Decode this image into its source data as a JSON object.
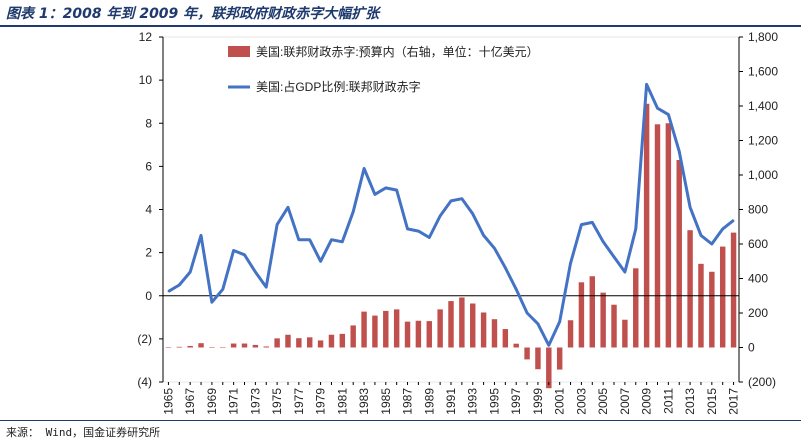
{
  "title": "图表 1：2008 年到 2009 年，联邦政府财政赤字大幅扩张",
  "source": "来源： Wind，国金证券研究所",
  "colors": {
    "bar": "#c0504d",
    "line": "#4472c4",
    "title": "#1f3a6e"
  },
  "chart_data": {
    "type": "bar+line",
    "categories": [
      "1965",
      "1966",
      "1967",
      "1968",
      "1969",
      "1970",
      "1971",
      "1972",
      "1973",
      "1974",
      "1975",
      "1976",
      "1977",
      "1978",
      "1979",
      "1980",
      "1981",
      "1982",
      "1983",
      "1984",
      "1985",
      "1986",
      "1987",
      "1988",
      "1989",
      "1990",
      "1991",
      "1992",
      "1993",
      "1994",
      "1995",
      "1996",
      "1997",
      "1998",
      "1999",
      "2000",
      "2001",
      "2002",
      "2003",
      "2004",
      "2005",
      "2006",
      "2007",
      "2008",
      "2009",
      "2010",
      "2011",
      "2012",
      "2013",
      "2014",
      "2015",
      "2016",
      "2017"
    ],
    "x_tick_labels": [
      "1965",
      "1967",
      "1969",
      "1971",
      "1973",
      "1975",
      "1977",
      "1979",
      "1981",
      "1983",
      "1985",
      "1987",
      "1989",
      "1991",
      "1993",
      "1995",
      "1997",
      "1999",
      "2001",
      "2003",
      "2005",
      "2007",
      "2009",
      "2011",
      "2013",
      "2015",
      "2017"
    ],
    "series": [
      {
        "name": "美国:联邦财政赤字:预算内（右轴，单位：十亿美元）",
        "type": "bar",
        "axis": "right",
        "values": [
          1,
          4,
          9,
          25,
          -3,
          3,
          23,
          23,
          15,
          6,
          53,
          74,
          54,
          59,
          41,
          74,
          79,
          128,
          208,
          185,
          212,
          221,
          150,
          155,
          153,
          221,
          269,
          290,
          255,
          203,
          164,
          107,
          22,
          -69,
          -126,
          -236,
          -128,
          158,
          378,
          413,
          318,
          248,
          161,
          459,
          1413,
          1294,
          1300,
          1087,
          680,
          485,
          439,
          585,
          666
        ]
      },
      {
        "name": "美国:占GDP比例:联邦财政赤字",
        "type": "line",
        "axis": "left",
        "values": [
          0.2,
          0.5,
          1.1,
          2.8,
          -0.3,
          0.3,
          2.1,
          1.9,
          1.1,
          0.4,
          3.3,
          4.1,
          2.6,
          2.6,
          1.6,
          2.6,
          2.5,
          3.9,
          5.9,
          4.7,
          5.0,
          4.9,
          3.1,
          3.0,
          2.7,
          3.7,
          4.4,
          4.5,
          3.8,
          2.8,
          2.2,
          1.3,
          0.3,
          -0.8,
          -1.3,
          -2.3,
          -1.2,
          1.5,
          3.3,
          3.4,
          2.5,
          1.8,
          1.1,
          3.1,
          9.8,
          8.7,
          8.4,
          6.7,
          4.1,
          2.8,
          2.4,
          3.1,
          3.5
        ]
      }
    ],
    "left_axis": {
      "ylim": [
        -4,
        12
      ],
      "ticks": [
        -4,
        -2,
        0,
        2,
        4,
        6,
        8,
        10,
        12
      ],
      "tick_labels": [
        "(4)",
        "(2)",
        "0",
        "2",
        "4",
        "6",
        "8",
        "10",
        "12"
      ]
    },
    "right_axis": {
      "ylim": [
        -200,
        1800
      ],
      "ticks": [
        -200,
        0,
        200,
        400,
        600,
        800,
        1000,
        1200,
        1400,
        1600,
        1800
      ],
      "tick_labels": [
        "(200)",
        "0",
        "200",
        "400",
        "600",
        "800",
        "1,000",
        "1,200",
        "1,400",
        "1,600",
        "1,800"
      ]
    },
    "legend": {
      "position": "top-center"
    }
  }
}
